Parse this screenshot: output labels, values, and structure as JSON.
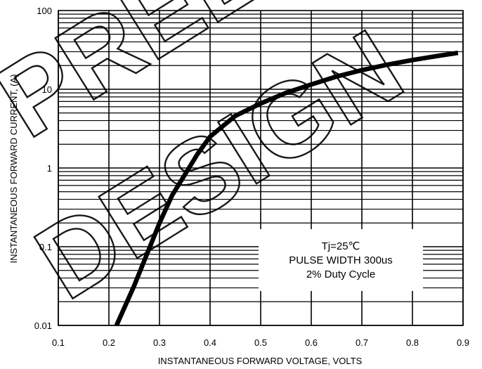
{
  "chart_data": {
    "type": "line",
    "title": "",
    "xlabel": "INSTANTANEOUS FORWARD VOLTAGE, VOLTS",
    "ylabel": "INSTANTANEOUS FORWARD CURRENT, (A)",
    "xlim": [
      0.1,
      0.9
    ],
    "ylim": [
      0.01,
      100
    ],
    "yscale": "log",
    "grid": true,
    "x_ticks": [
      "0.1",
      "0.2",
      "0.3",
      "0.4",
      "0.5",
      "0.6",
      "0.7",
      "0.8",
      "0.9"
    ],
    "y_ticks": [
      "0.01",
      "0.1",
      "1",
      "10",
      "100"
    ],
    "series": [
      {
        "x": [
          0.215,
          0.25,
          0.275,
          0.3,
          0.325,
          0.35,
          0.375,
          0.4,
          0.45,
          0.5,
          0.55,
          0.6,
          0.65,
          0.7,
          0.75,
          0.8,
          0.85,
          0.89
        ],
        "y": [
          0.01,
          0.032,
          0.08,
          0.2,
          0.45,
          0.82,
          1.5,
          2.5,
          4.6,
          6.6,
          9.0,
          11.5,
          14.5,
          17.5,
          20.5,
          23.5,
          26.5,
          29.0
        ]
      }
    ],
    "annotation": {
      "lines": [
        "Tj=25℃",
        "PULSE WIDTH 300us",
        "2% Duty Cycle"
      ]
    },
    "watermark": [
      "PRELIMINARY",
      "DESIGN"
    ]
  }
}
